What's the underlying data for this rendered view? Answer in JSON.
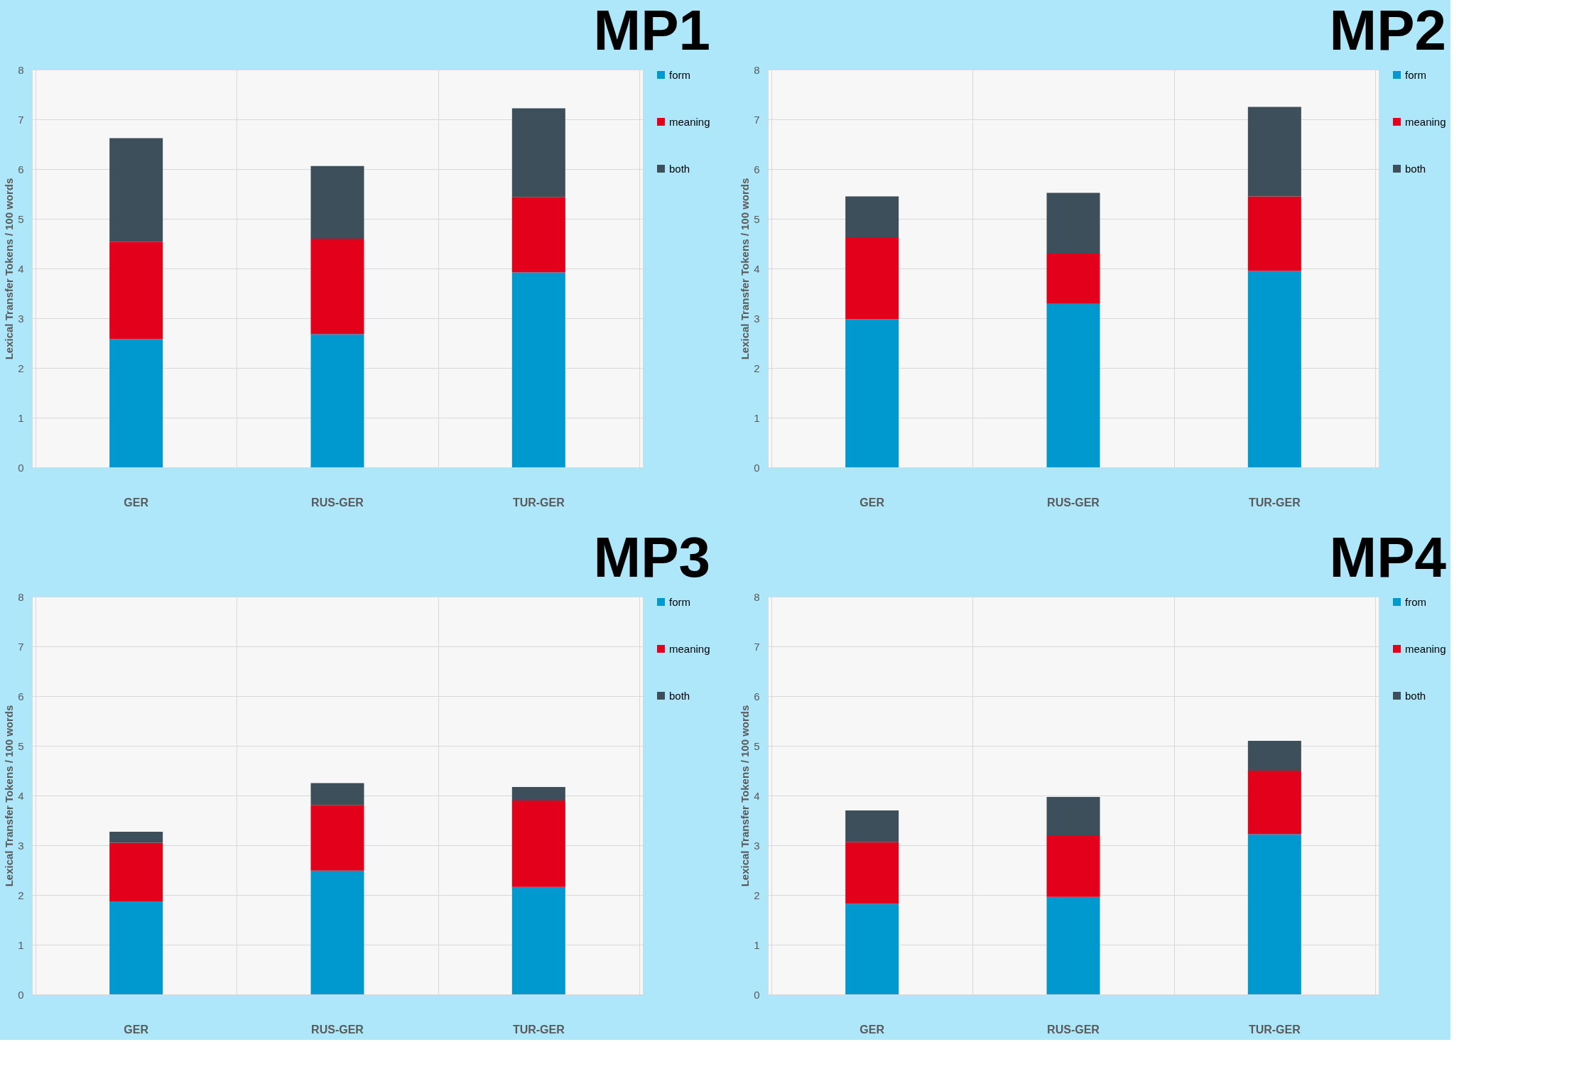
{
  "chart_data": [
    {
      "type": "bar",
      "title": "MP1",
      "ylabel": "Lexical Transfer Tokens / 100 words",
      "categories": [
        "GER",
        "RUS-GER",
        "TUR-GER"
      ],
      "stacked": true,
      "ylim": [
        0,
        8
      ],
      "yticks": [
        0,
        1,
        2,
        3,
        4,
        5,
        6,
        7,
        8
      ],
      "grid": true,
      "legend": "right",
      "series": [
        {
          "name": "form",
          "color": "#0099cf",
          "values": [
            2.58,
            2.68,
            3.92
          ]
        },
        {
          "name": "meaning",
          "color": "#e2001a",
          "values": [
            1.96,
            1.92,
            1.52
          ]
        },
        {
          "name": "both",
          "color": "#3c4f5a",
          "values": [
            2.08,
            1.46,
            1.78
          ]
        }
      ]
    },
    {
      "type": "bar",
      "title": "MP2",
      "ylabel": "Lexical Transfer Tokens / 100 words",
      "categories": [
        "GER",
        "RUS-GER",
        "TUR-GER"
      ],
      "stacked": true,
      "ylim": [
        0,
        8
      ],
      "yticks": [
        0,
        1,
        2,
        3,
        4,
        5,
        6,
        7,
        8
      ],
      "grid": true,
      "legend": "right",
      "series": [
        {
          "name": "form",
          "color": "#0099cf",
          "values": [
            2.98,
            3.29,
            3.95
          ]
        },
        {
          "name": "meaning",
          "color": "#e2001a",
          "values": [
            1.65,
            1.01,
            1.5
          ]
        },
        {
          "name": "both",
          "color": "#3c4f5a",
          "values": [
            0.82,
            1.22,
            1.8
          ]
        }
      ]
    },
    {
      "type": "bar",
      "title": "MP3",
      "ylabel": "Lexical Transfer Tokens / 100 words",
      "categories": [
        "GER",
        "RUS-GER",
        "TUR-GER"
      ],
      "stacked": true,
      "ylim": [
        0,
        8
      ],
      "yticks": [
        0,
        1,
        2,
        3,
        4,
        5,
        6,
        7,
        8
      ],
      "grid": true,
      "legend": "right",
      "series": [
        {
          "name": "form",
          "color": "#0099cf",
          "values": [
            1.87,
            2.49,
            2.16
          ]
        },
        {
          "name": "meaning",
          "color": "#e2001a",
          "values": [
            1.18,
            1.32,
            1.74
          ]
        },
        {
          "name": "both",
          "color": "#3c4f5a",
          "values": [
            0.22,
            0.44,
            0.27
          ]
        }
      ]
    },
    {
      "type": "bar",
      "title": "MP4",
      "ylabel": "Lexical Transfer Tokens / 100 words",
      "categories": [
        "GER",
        "RUS-GER",
        "TUR-GER"
      ],
      "stacked": true,
      "ylim": [
        0,
        8
      ],
      "yticks": [
        0,
        1,
        2,
        3,
        4,
        5,
        6,
        7,
        8
      ],
      "grid": true,
      "legend": "right",
      "series": [
        {
          "name": "from",
          "color": "#0099cf",
          "values": [
            1.82,
            1.96,
            3.22
          ]
        },
        {
          "name": "meaning",
          "color": "#e2001a",
          "values": [
            1.24,
            1.24,
            1.28
          ]
        },
        {
          "name": "both",
          "color": "#3c4f5a",
          "values": [
            0.64,
            0.77,
            0.6
          ]
        }
      ]
    }
  ]
}
